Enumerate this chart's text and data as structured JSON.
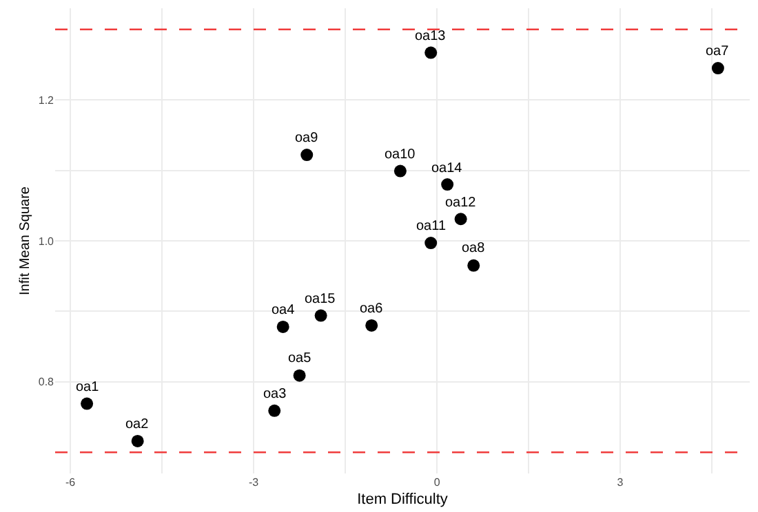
{
  "chart_data": {
    "type": "scatter",
    "xlabel": "Item Difficulty",
    "ylabel": "Infit Mean Square",
    "x": [
      -5.73,
      -4.9,
      -2.66,
      -2.52,
      -2.25,
      -1.07,
      4.6,
      0.6,
      -2.13,
      -0.6,
      -0.1,
      0.39,
      -0.1,
      0.17,
      -1.9
    ],
    "series": [
      {
        "color": "#000000",
        "values": [
          0.769,
          0.716,
          0.759,
          0.878,
          0.809,
          0.88,
          1.245,
          0.965,
          1.122,
          1.099,
          0.997,
          1.031,
          1.267,
          1.08,
          0.894
        ]
      }
    ],
    "annotations": [
      {
        "text": "oa1",
        "x": -5.73,
        "y": 0.769
      },
      {
        "text": "oa2",
        "x": -4.9,
        "y": 0.716
      },
      {
        "text": "oa3",
        "x": -2.66,
        "y": 0.759
      },
      {
        "text": "oa4",
        "x": -2.52,
        "y": 0.878
      },
      {
        "text": "oa5",
        "x": -2.25,
        "y": 0.809
      },
      {
        "text": "oa6",
        "x": -1.07,
        "y": 0.88
      },
      {
        "text": "oa7",
        "x": 4.6,
        "y": 1.245
      },
      {
        "text": "oa8",
        "x": 0.6,
        "y": 0.965
      },
      {
        "text": "oa9",
        "x": -2.13,
        "y": 1.122
      },
      {
        "text": "oa10",
        "x": -0.6,
        "y": 1.099
      },
      {
        "text": "oa11",
        "x": -0.1,
        "y": 0.997
      },
      {
        "text": "oa12",
        "x": 0.39,
        "y": 1.031
      },
      {
        "text": "oa13",
        "x": -0.1,
        "y": 1.267
      },
      {
        "text": "oa14",
        "x": 0.17,
        "y": 1.08
      },
      {
        "text": "oa15",
        "x": -1.9,
        "y": 0.894
      }
    ],
    "ref_lines": [
      {
        "axis": "y",
        "value": 1.3,
        "color": "#f03c3c",
        "line_style": "dashed"
      },
      {
        "axis": "y",
        "value": 0.7,
        "color": "#f03c3c",
        "line_style": "dashed"
      }
    ],
    "xlim": [
      -6.25,
      5.12
    ],
    "ylim": [
      0.67,
      1.33
    ],
    "xticks": [
      -6,
      {
        "value": -4.5,
        "label": null
      },
      -3,
      {
        "value": -1.5,
        "label": null
      },
      0,
      {
        "value": 1.5,
        "label": null
      },
      3,
      {
        "value": 4.5,
        "label": null
      }
    ],
    "yticks": [
      0.8,
      {
        "value": 0.9,
        "label": null
      },
      {
        "value": 1.0,
        "label": "1.0"
      },
      {
        "value": 1.1,
        "label": null
      },
      1.2
    ],
    "grid": true,
    "marker": "circle"
  }
}
